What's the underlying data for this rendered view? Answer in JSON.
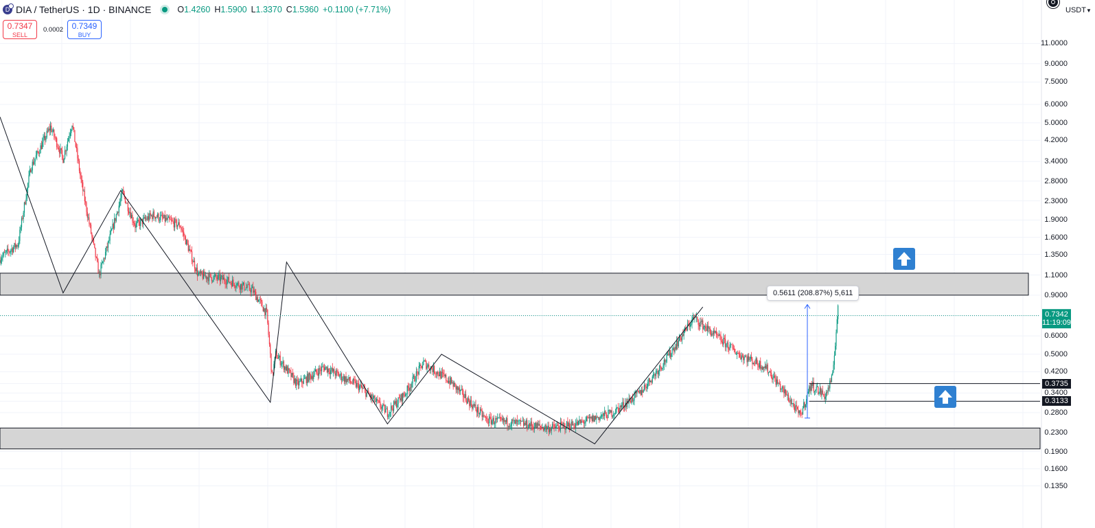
{
  "header": {
    "symbol_title": "DIA / TetherUS · 1D · BINANCE",
    "coin_icon": "D",
    "ohlc": [
      {
        "k": "O",
        "v": "1.4260"
      },
      {
        "k": "H",
        "v": "1.5900"
      },
      {
        "k": "L",
        "v": "1.3370"
      },
      {
        "k": "C",
        "v": "1.5360"
      },
      {
        "k": "",
        "v": "+0.1100 (+7.71%)"
      }
    ]
  },
  "trade": {
    "sell_price": "0.7347",
    "sell_label": "SELL",
    "spread": "0.0002",
    "buy_price": "0.7349",
    "buy_label": "BUY"
  },
  "currency_select": {
    "value": "USDT",
    "icon": "chevron-down-icon"
  },
  "colors": {
    "up": "#089981",
    "down": "#f23645",
    "zone": "#d3d3d3",
    "accent": "#2962ff",
    "arrow": "#2f80d1"
  },
  "chart_data": {
    "type": "candlestick",
    "scale": "log",
    "grid": true,
    "y_tick_labels": [
      "11.0000",
      "9.0000",
      "7.5000",
      "6.0000",
      "5.0000",
      "4.2000",
      "3.4000",
      "2.8000",
      "2.3000",
      "1.9000",
      "1.6000",
      "1.3500",
      "1.1000",
      "0.9000",
      "0.7342",
      "0.6000",
      "0.5000",
      "0.4200",
      "0.3735",
      "0.3400",
      "0.3133",
      "0.2800",
      "0.2300",
      "0.1900",
      "0.1600",
      "0.1350"
    ],
    "current_price": {
      "value": "0.7342",
      "countdown": "11:19:09"
    },
    "horizontal_levels": [
      0.3735,
      0.3133
    ],
    "zones": [
      {
        "from": 0.9,
        "to": 1.12
      },
      {
        "from": 0.195,
        "to": 0.24
      }
    ],
    "zigzag": [
      {
        "t": 0,
        "p": 5.3
      },
      {
        "t": 35,
        "p": 0.92
      },
      {
        "t": 67,
        "p": 2.55
      },
      {
        "t": 150,
        "p": 0.31
      },
      {
        "t": 159,
        "p": 1.25
      },
      {
        "t": 215,
        "p": 0.25
      },
      {
        "t": 245,
        "p": 0.5
      },
      {
        "t": 330,
        "p": 0.205
      },
      {
        "t": 390,
        "p": 0.8
      }
    ],
    "measure": {
      "from": 0.265,
      "to": 0.82,
      "label": "0.5611 (208.87%) 5,611"
    },
    "price_path": [
      {
        "t": 0,
        "p": 1.3
      },
      {
        "t": 10,
        "p": 1.5
      },
      {
        "t": 17,
        "p": 3.2
      },
      {
        "t": 28,
        "p": 4.8
      },
      {
        "t": 35,
        "p": 3.5
      },
      {
        "t": 40,
        "p": 5.0
      },
      {
        "t": 45,
        "p": 2.8
      },
      {
        "t": 55,
        "p": 1.1
      },
      {
        "t": 60,
        "p": 1.5
      },
      {
        "t": 68,
        "p": 2.5
      },
      {
        "t": 75,
        "p": 1.8
      },
      {
        "t": 85,
        "p": 2.0
      },
      {
        "t": 100,
        "p": 1.8
      },
      {
        "t": 110,
        "p": 1.1
      },
      {
        "t": 125,
        "p": 1.05
      },
      {
        "t": 140,
        "p": 0.95
      },
      {
        "t": 148,
        "p": 0.75
      },
      {
        "t": 151,
        "p": 0.4
      },
      {
        "t": 153,
        "p": 0.5
      },
      {
        "t": 165,
        "p": 0.37
      },
      {
        "t": 180,
        "p": 0.44
      },
      {
        "t": 200,
        "p": 0.36
      },
      {
        "t": 215,
        "p": 0.28
      },
      {
        "t": 225,
        "p": 0.34
      },
      {
        "t": 235,
        "p": 0.46
      },
      {
        "t": 250,
        "p": 0.38
      },
      {
        "t": 270,
        "p": 0.26
      },
      {
        "t": 290,
        "p": 0.25
      },
      {
        "t": 305,
        "p": 0.24
      },
      {
        "t": 320,
        "p": 0.25
      },
      {
        "t": 340,
        "p": 0.28
      },
      {
        "t": 355,
        "p": 0.34
      },
      {
        "t": 370,
        "p": 0.48
      },
      {
        "t": 385,
        "p": 0.72
      },
      {
        "t": 395,
        "p": 0.62
      },
      {
        "t": 410,
        "p": 0.5
      },
      {
        "t": 425,
        "p": 0.44
      },
      {
        "t": 438,
        "p": 0.32
      },
      {
        "t": 444,
        "p": 0.27
      },
      {
        "t": 450,
        "p": 0.37
      },
      {
        "t": 458,
        "p": 0.33
      },
      {
        "t": 462,
        "p": 0.4
      },
      {
        "t": 465,
        "p": 0.8
      }
    ]
  }
}
